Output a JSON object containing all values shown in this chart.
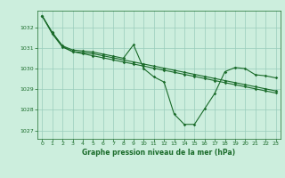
{
  "title": "Graphe pression niveau de la mer (hPa)",
  "bg_color": "#cceedd",
  "grid_color": "#99ccbb",
  "line_color": "#1a6b2a",
  "xlim": [
    -0.5,
    23.5
  ],
  "ylim": [
    1026.6,
    1032.8
  ],
  "yticks": [
    1027,
    1028,
    1029,
    1030,
    1031,
    1032
  ],
  "xticks": [
    0,
    1,
    2,
    3,
    4,
    5,
    6,
    7,
    8,
    9,
    10,
    11,
    12,
    13,
    14,
    15,
    16,
    17,
    18,
    19,
    20,
    21,
    22,
    23
  ],
  "series1": {
    "x": [
      0,
      1,
      2,
      3,
      4,
      5,
      6,
      7,
      8,
      9,
      10,
      11,
      12,
      13,
      14,
      15,
      16,
      17,
      18,
      19,
      20,
      21,
      22,
      23
    ],
    "y": [
      1032.55,
      1031.75,
      1031.1,
      1030.9,
      1030.85,
      1030.8,
      1030.7,
      1030.6,
      1030.5,
      1031.15,
      1030.0,
      1029.6,
      1029.35,
      1027.8,
      1027.3,
      1027.3,
      1028.05,
      1028.8,
      1029.85,
      1030.05,
      1030.0,
      1029.7,
      1029.65,
      1029.55
    ]
  },
  "series2": {
    "x": [
      0,
      1,
      2,
      3,
      4,
      5,
      6,
      7,
      8,
      9,
      10,
      11,
      12,
      13,
      14,
      15,
      16,
      17,
      18,
      19,
      20,
      21,
      22,
      23
    ],
    "y": [
      1032.55,
      1031.72,
      1031.08,
      1030.82,
      1030.77,
      1030.72,
      1030.62,
      1030.52,
      1030.42,
      1030.32,
      1030.22,
      1030.12,
      1030.02,
      1029.92,
      1029.82,
      1029.72,
      1029.62,
      1029.52,
      1029.42,
      1029.32,
      1029.22,
      1029.12,
      1029.02,
      1028.92
    ]
  },
  "series3": {
    "x": [
      0,
      1,
      2,
      3,
      4,
      5,
      6,
      7,
      8,
      9,
      10,
      11,
      12,
      13,
      14,
      15,
      16,
      17,
      18,
      19,
      20,
      21,
      22,
      23
    ],
    "y": [
      1032.55,
      1031.68,
      1031.04,
      1030.82,
      1030.72,
      1030.62,
      1030.52,
      1030.42,
      1030.32,
      1030.22,
      1030.12,
      1030.02,
      1029.92,
      1029.82,
      1029.72,
      1029.62,
      1029.52,
      1029.42,
      1029.32,
      1029.22,
      1029.12,
      1029.02,
      1028.92,
      1028.82
    ]
  }
}
